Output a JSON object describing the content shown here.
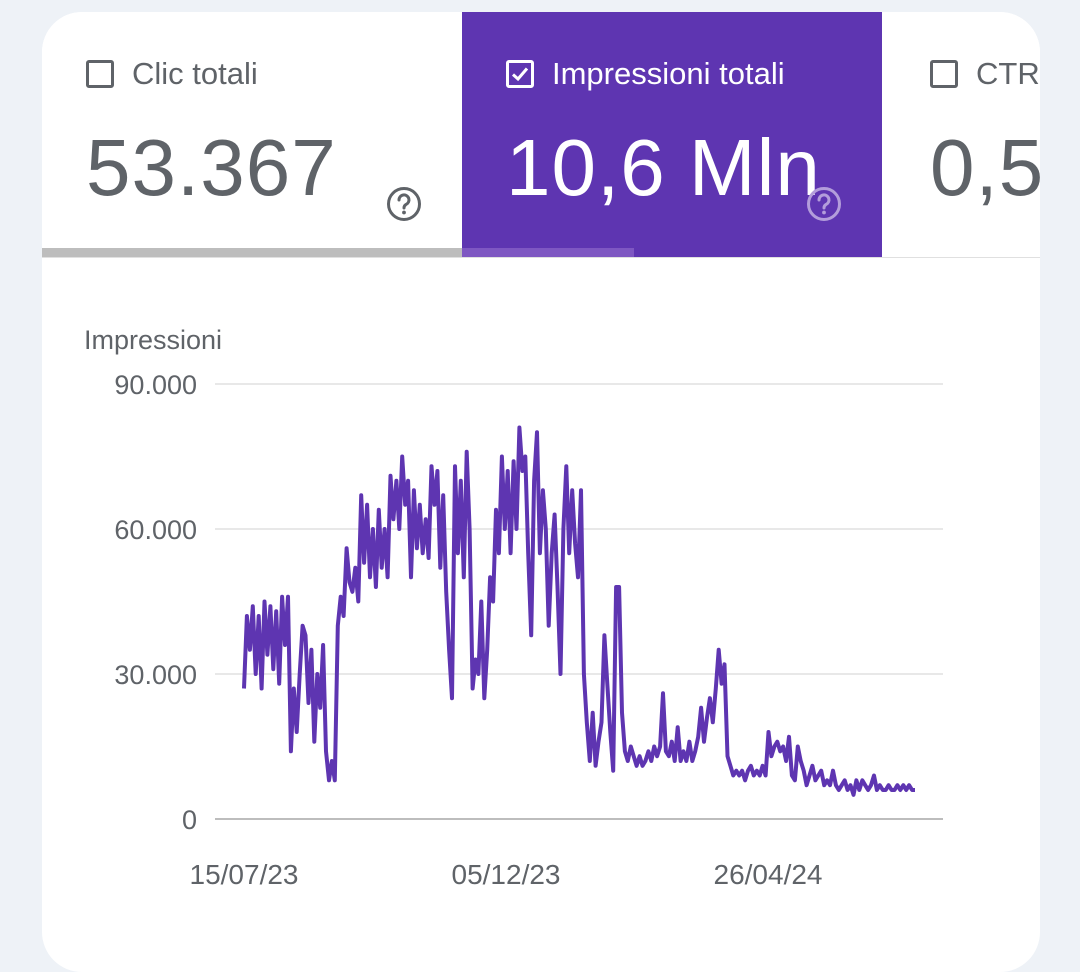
{
  "metrics": {
    "clicks": {
      "label": "Clic totali",
      "value": "53.367",
      "checked": false
    },
    "impressions": {
      "label": "Impressioni totali",
      "value": "10,6 Mln",
      "checked": true
    },
    "ctr": {
      "label": "CTR",
      "value": "0,5"
    }
  },
  "icons": {
    "checkbox": "checkbox-icon",
    "checkbox_checked": "checkbox-checked-icon",
    "help": "help-circle-icon"
  },
  "colors": {
    "accent": "#5e35b1",
    "line": "#5e35b1",
    "text": "#5f6368",
    "grid": "#e0e0e0"
  },
  "chart_data": {
    "type": "line",
    "ylabel": "Impressioni",
    "ylim": [
      0,
      90000
    ],
    "yticks": [
      "90.000",
      "60.000",
      "30.000",
      "0"
    ],
    "xticks": [
      "15/07/23",
      "05/12/23",
      "26/04/24"
    ],
    "grid": true,
    "series": [
      {
        "values": [
          27000,
          42000,
          35000,
          44000,
          30000,
          42000,
          27000,
          45000,
          34000,
          44000,
          31000,
          43000,
          28000,
          46000,
          36000,
          46000,
          14000,
          27000,
          18000,
          30000,
          40000,
          38000,
          24000,
          35000,
          16000,
          30000,
          23000,
          36000,
          14000,
          8000,
          12000,
          8000,
          40000,
          46000,
          42000,
          56000,
          49000,
          47000,
          52000,
          45000,
          67000,
          53000,
          65000,
          50000,
          60000,
          48000,
          64000,
          52000,
          60000,
          50000,
          71000,
          62000,
          70000,
          60000,
          75000,
          65000,
          70000,
          50000,
          68000,
          56000,
          65000,
          55000,
          62000,
          54000,
          73000,
          65000,
          72000,
          52000,
          67000,
          47000,
          35000,
          25000,
          73000,
          55000,
          70000,
          50000,
          76000,
          60000,
          27000,
          33000,
          30000,
          45000,
          25000,
          35000,
          50000,
          45000,
          64000,
          55000,
          75000,
          60000,
          72000,
          55000,
          74000,
          60000,
          81000,
          72000,
          75000,
          55000,
          38000,
          70000,
          80000,
          55000,
          68000,
          60000,
          40000,
          55000,
          63000,
          48000,
          30000,
          60000,
          73000,
          55000,
          68000,
          57000,
          50000,
          68000,
          30000,
          20000,
          12000,
          22000,
          11000,
          16000,
          20000,
          38000,
          28000,
          18000,
          10000,
          48000,
          48000,
          22000,
          14000,
          12000,
          15000,
          13000,
          11000,
          13000,
          11000,
          12000,
          14000,
          12000,
          15000,
          13000,
          15000,
          26000,
          14000,
          13000,
          16000,
          12000,
          19000,
          12000,
          14000,
          12000,
          16000,
          12000,
          14000,
          17000,
          23000,
          16000,
          21000,
          25000,
          20000,
          27000,
          35000,
          28000,
          32000,
          13000,
          11000,
          9000,
          10000,
          9000,
          10000,
          8000,
          10000,
          11000,
          9000,
          10000,
          9000,
          11000,
          9000,
          18000,
          13000,
          15000,
          16000,
          14000,
          15000,
          12000,
          17000,
          9000,
          8000,
          15000,
          12000,
          10000,
          7000,
          9000,
          11000,
          8000,
          9000,
          10000,
          7000,
          8000,
          7000,
          10000,
          7000,
          6000,
          7000,
          8000,
          6000,
          7000,
          5000,
          8000,
          6000,
          8000,
          7000,
          6000,
          7000,
          9000,
          6000,
          7000,
          6000,
          6000,
          7000,
          6000,
          6000,
          7000,
          6000,
          7000,
          6000,
          7000,
          6000,
          6000
        ]
      }
    ]
  }
}
